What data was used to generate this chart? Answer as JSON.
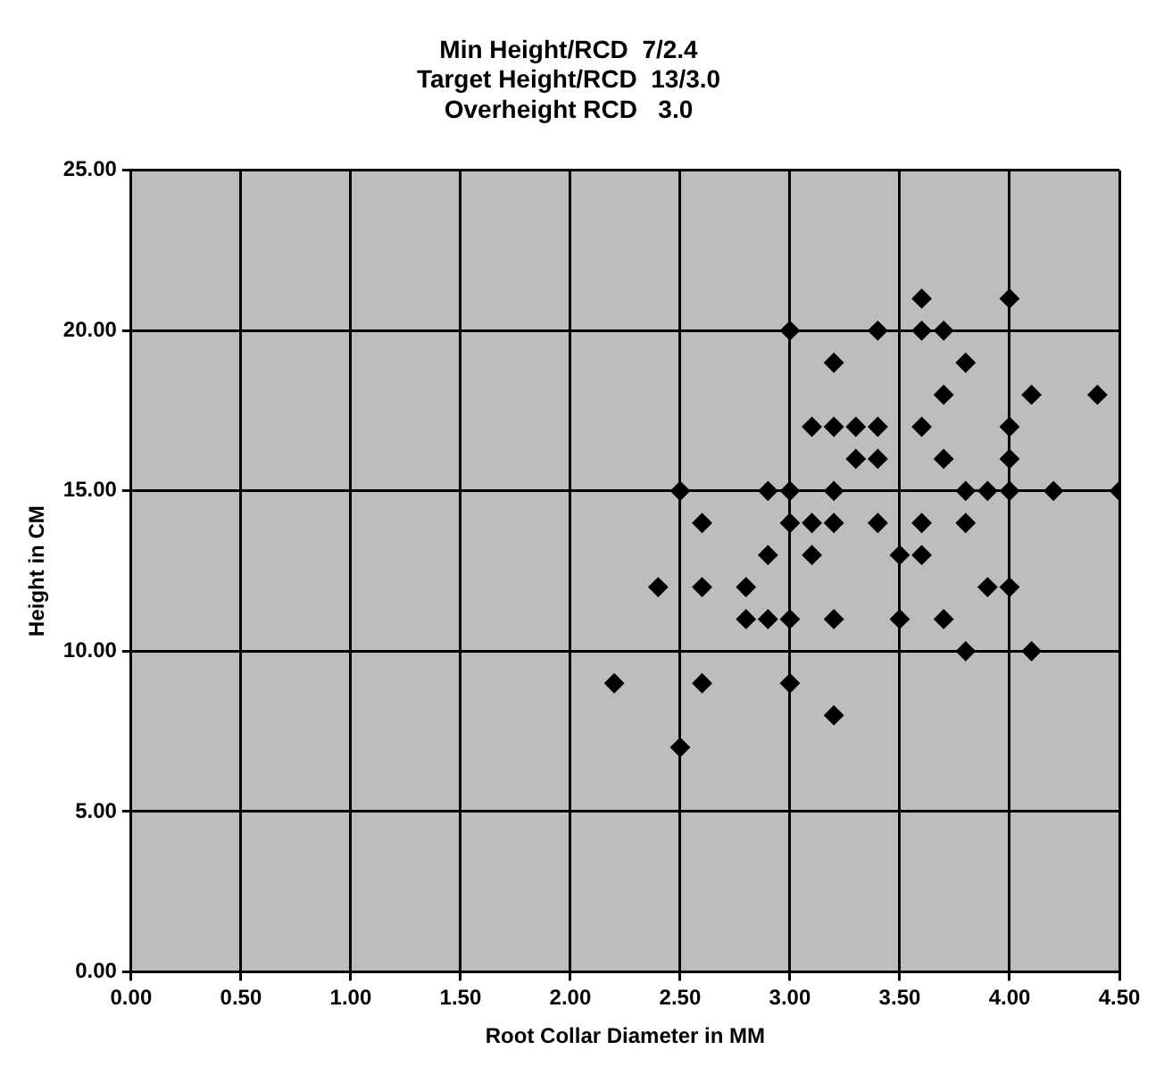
{
  "chart_data": {
    "type": "scatter",
    "title": "Min Height/RCD  7/2.4\nTarget Height/RCD  13/3.0\nOverheight RCD   3.0",
    "xlabel": "Root Collar Diameter in MM",
    "ylabel": "Height in CM",
    "x": [
      2.5,
      2.6,
      2.4,
      2.6,
      2.8,
      2.8,
      2.2,
      2.6,
      2.5,
      3.6,
      4.0,
      3.0,
      3.4,
      3.6,
      3.7,
      3.2,
      3.8,
      3.7,
      4.1,
      3.1,
      3.2,
      3.3,
      3.4,
      3.6,
      4.0,
      3.3,
      3.4,
      3.7,
      4.0,
      2.9,
      3.0,
      3.2,
      3.8,
      3.9,
      4.0,
      4.2,
      3.0,
      3.1,
      3.2,
      3.4,
      3.6,
      3.8,
      2.9,
      3.1,
      3.5,
      3.6,
      3.9,
      4.0,
      2.9,
      3.0,
      3.2,
      3.5,
      3.7,
      3.8,
      4.1,
      3.0,
      3.2,
      4.4,
      4.5
    ],
    "values": [
      15,
      14,
      12,
      12,
      12,
      11,
      9,
      9,
      7,
      21,
      21,
      20,
      20,
      20,
      20,
      19,
      19,
      18,
      18,
      17,
      17,
      17,
      17,
      17,
      17,
      16,
      16,
      16,
      16,
      15,
      15,
      15,
      15,
      15,
      15,
      15,
      14,
      14,
      14,
      14,
      14,
      14,
      13,
      13,
      13,
      13,
      12,
      12,
      11,
      11,
      11,
      11,
      11,
      10,
      10,
      9,
      8,
      18,
      15
    ],
    "color": "#000000",
    "marker": "diamond",
    "grid": true,
    "legend": false,
    "xlim": [
      0,
      4.5
    ],
    "xticks": [
      {
        "value": 0,
        "label": "0.00"
      },
      {
        "value": 0.5,
        "label": "0.50"
      },
      {
        "value": 1,
        "label": "1.00"
      },
      {
        "value": 1.5,
        "label": "1.50"
      },
      {
        "value": 2,
        "label": "2.00"
      },
      {
        "value": 2.5,
        "label": "2.50"
      },
      {
        "value": 3,
        "label": "3.00"
      },
      {
        "value": 3.5,
        "label": "3.50"
      },
      {
        "value": 4,
        "label": "4.00"
      },
      {
        "value": 4.5,
        "label": "4.50"
      }
    ],
    "ylim": [
      0,
      25
    ],
    "yticks": [
      {
        "value": 0,
        "label": "0.00"
      },
      {
        "value": 5,
        "label": "5.00"
      },
      {
        "value": 10,
        "label": "10.00"
      },
      {
        "value": 15,
        "label": "15.00"
      },
      {
        "value": 20,
        "label": "20.00"
      },
      {
        "value": 25,
        "label": "25.00"
      }
    ]
  }
}
